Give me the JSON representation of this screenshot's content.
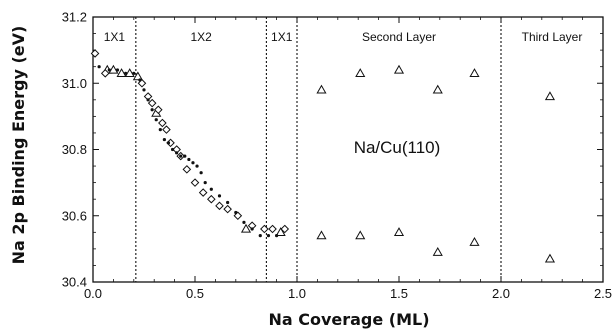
{
  "chart_data": {
    "type": "scatter",
    "title": "",
    "xlabel": "Na Coverage (ML)",
    "ylabel": "Na 2p Binding Energy (eV)",
    "xlim": [
      0.0,
      2.5
    ],
    "ylim": [
      30.4,
      31.2
    ],
    "x_ticks": [
      "0.0",
      "0.5",
      "1.0",
      "1.5",
      "2.0",
      "2.5"
    ],
    "y_ticks": [
      "30.4",
      "30.6",
      "30.8",
      "31.0",
      "31.2"
    ],
    "annotation": "Na/Cu(110)",
    "regions": [
      {
        "label": "1X1",
        "x_start": 0.0,
        "x_end": 0.21
      },
      {
        "label": "1X2",
        "x_start": 0.21,
        "x_end": 0.85
      },
      {
        "label": "1X1",
        "x_start": 0.85,
        "x_end": 1.0
      },
      {
        "label": "Second Layer",
        "x_start": 1.0,
        "x_end": 2.0
      },
      {
        "label": "Third Layer",
        "x_start": 2.0,
        "x_end": 2.5
      }
    ],
    "boundaries": [
      0.21,
      0.85,
      1.0,
      2.0
    ],
    "series": [
      {
        "marker": "triangle",
        "points": [
          [
            0.07,
            31.04
          ],
          [
            0.1,
            31.04
          ],
          [
            0.14,
            31.03
          ],
          [
            0.18,
            31.03
          ],
          [
            0.22,
            31.02
          ],
          [
            0.31,
            30.91
          ],
          [
            0.75,
            30.56
          ],
          [
            0.92,
            30.55
          ],
          [
            1.12,
            30.98
          ],
          [
            1.31,
            31.03
          ],
          [
            1.5,
            31.04
          ],
          [
            1.69,
            30.98
          ],
          [
            1.87,
            31.03
          ],
          [
            2.24,
            30.96
          ],
          [
            1.12,
            30.54
          ],
          [
            1.31,
            30.54
          ],
          [
            1.5,
            30.55
          ],
          [
            1.69,
            30.49
          ],
          [
            1.87,
            30.52
          ],
          [
            2.24,
            30.47
          ]
        ]
      },
      {
        "marker": "diamond",
        "points": [
          [
            0.01,
            31.09
          ],
          [
            0.06,
            31.03
          ],
          [
            0.24,
            31.0
          ],
          [
            0.27,
            30.96
          ],
          [
            0.29,
            30.94
          ],
          [
            0.32,
            30.92
          ],
          [
            0.34,
            30.88
          ],
          [
            0.36,
            30.86
          ],
          [
            0.38,
            30.82
          ],
          [
            0.41,
            30.8
          ],
          [
            0.43,
            30.78
          ],
          [
            0.46,
            30.74
          ],
          [
            0.5,
            30.7
          ],
          [
            0.54,
            30.67
          ],
          [
            0.58,
            30.65
          ],
          [
            0.62,
            30.63
          ],
          [
            0.66,
            30.62
          ],
          [
            0.71,
            30.6
          ],
          [
            0.78,
            30.57
          ],
          [
            0.84,
            30.56
          ],
          [
            0.88,
            30.56
          ],
          [
            0.94,
            30.56
          ]
        ]
      },
      {
        "marker": "dot",
        "points": [
          [
            0.03,
            31.05
          ],
          [
            0.08,
            31.04
          ],
          [
            0.12,
            31.04
          ],
          [
            0.16,
            31.03
          ],
          [
            0.2,
            31.03
          ],
          [
            0.23,
            31.01
          ],
          [
            0.25,
            30.98
          ],
          [
            0.27,
            30.95
          ],
          [
            0.29,
            30.92
          ],
          [
            0.31,
            30.89
          ],
          [
            0.33,
            30.86
          ],
          [
            0.35,
            30.83
          ],
          [
            0.37,
            30.82
          ],
          [
            0.39,
            30.8
          ],
          [
            0.41,
            30.79
          ],
          [
            0.43,
            30.78
          ],
          [
            0.45,
            30.78
          ],
          [
            0.47,
            30.77
          ],
          [
            0.49,
            30.76
          ],
          [
            0.51,
            30.75
          ],
          [
            0.53,
            30.73
          ],
          [
            0.55,
            30.7
          ],
          [
            0.58,
            30.68
          ],
          [
            0.62,
            30.66
          ],
          [
            0.66,
            30.64
          ],
          [
            0.7,
            30.61
          ],
          [
            0.74,
            30.58
          ],
          [
            0.78,
            30.56
          ],
          [
            0.82,
            30.54
          ],
          [
            0.86,
            30.54
          ],
          [
            0.9,
            30.54
          ]
        ]
      }
    ],
    "grid": false,
    "legend": "none"
  }
}
